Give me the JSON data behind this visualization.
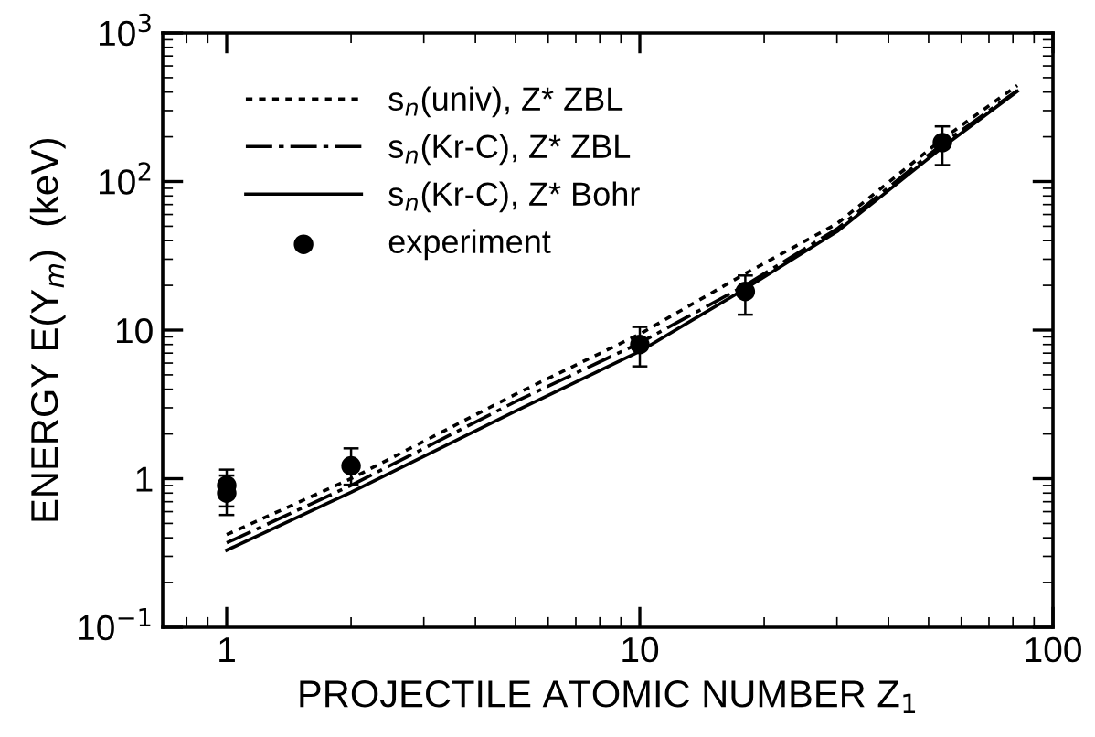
{
  "chart_data": {
    "type": "line",
    "xlabel": "PROJECTILE ATOMIC NUMBER Z$_{1}$",
    "ylabel": "ENERGY E(Y$_{m}$)  (keV)",
    "log": "xy",
    "xlim": [
      0.7,
      100
    ],
    "ylim": [
      0.1,
      1000
    ],
    "xticks": [
      1,
      10,
      100
    ],
    "yticks": [
      {
        "value": 0.1,
        "label": "10$^{−1}$"
      },
      1,
      10,
      {
        "value": 100,
        "label": "10$^{2}$"
      },
      {
        "value": 1000,
        "label": "10$^{3}$"
      }
    ],
    "grid": false,
    "legend": "top left",
    "marker": "none",
    "series": [
      {
        "name": "s$_{n}$(univ), Z* ZBL",
        "color": "#000000",
        "line_style": "dotted",
        "x": [
          1,
          2,
          5,
          10,
          18,
          30,
          54,
          82
        ],
        "values": [
          0.42,
          1.0,
          3.7,
          9.4,
          24,
          52,
          193,
          443
        ]
      },
      {
        "name": "s$_{n}$(Kr-C), Z* ZBL",
        "color": "#000000",
        "line_style": "dashdot",
        "x": [
          1,
          2,
          5,
          10,
          18,
          30,
          54,
          82
        ],
        "values": [
          0.37,
          0.9,
          3.3,
          8.2,
          20,
          48,
          179,
          410
        ]
      },
      {
        "name": "s$_{n}$(Kr-C), Z* Bohr",
        "color": "#000000",
        "line_style": "solid",
        "x": [
          1,
          2,
          5,
          10,
          18,
          30,
          54,
          82
        ],
        "values": [
          0.33,
          0.81,
          2.85,
          7.2,
          19,
          46,
          170,
          405
        ]
      },
      {
        "name": "experiment",
        "type": "scatter",
        "marker": "circle",
        "color": "#000000",
        "x": [
          1,
          1,
          2,
          10,
          18,
          54
        ],
        "values": [
          0.9,
          0.8,
          1.22,
          8.0,
          18.2,
          183
        ],
        "errors": [
          [
            0.65,
            1.15
          ],
          [
            0.57,
            1.05
          ],
          [
            0.91,
            1.6
          ],
          [
            5.7,
            10.5
          ],
          [
            12.7,
            23.3
          ],
          [
            129,
            235
          ]
        ]
      }
    ]
  }
}
